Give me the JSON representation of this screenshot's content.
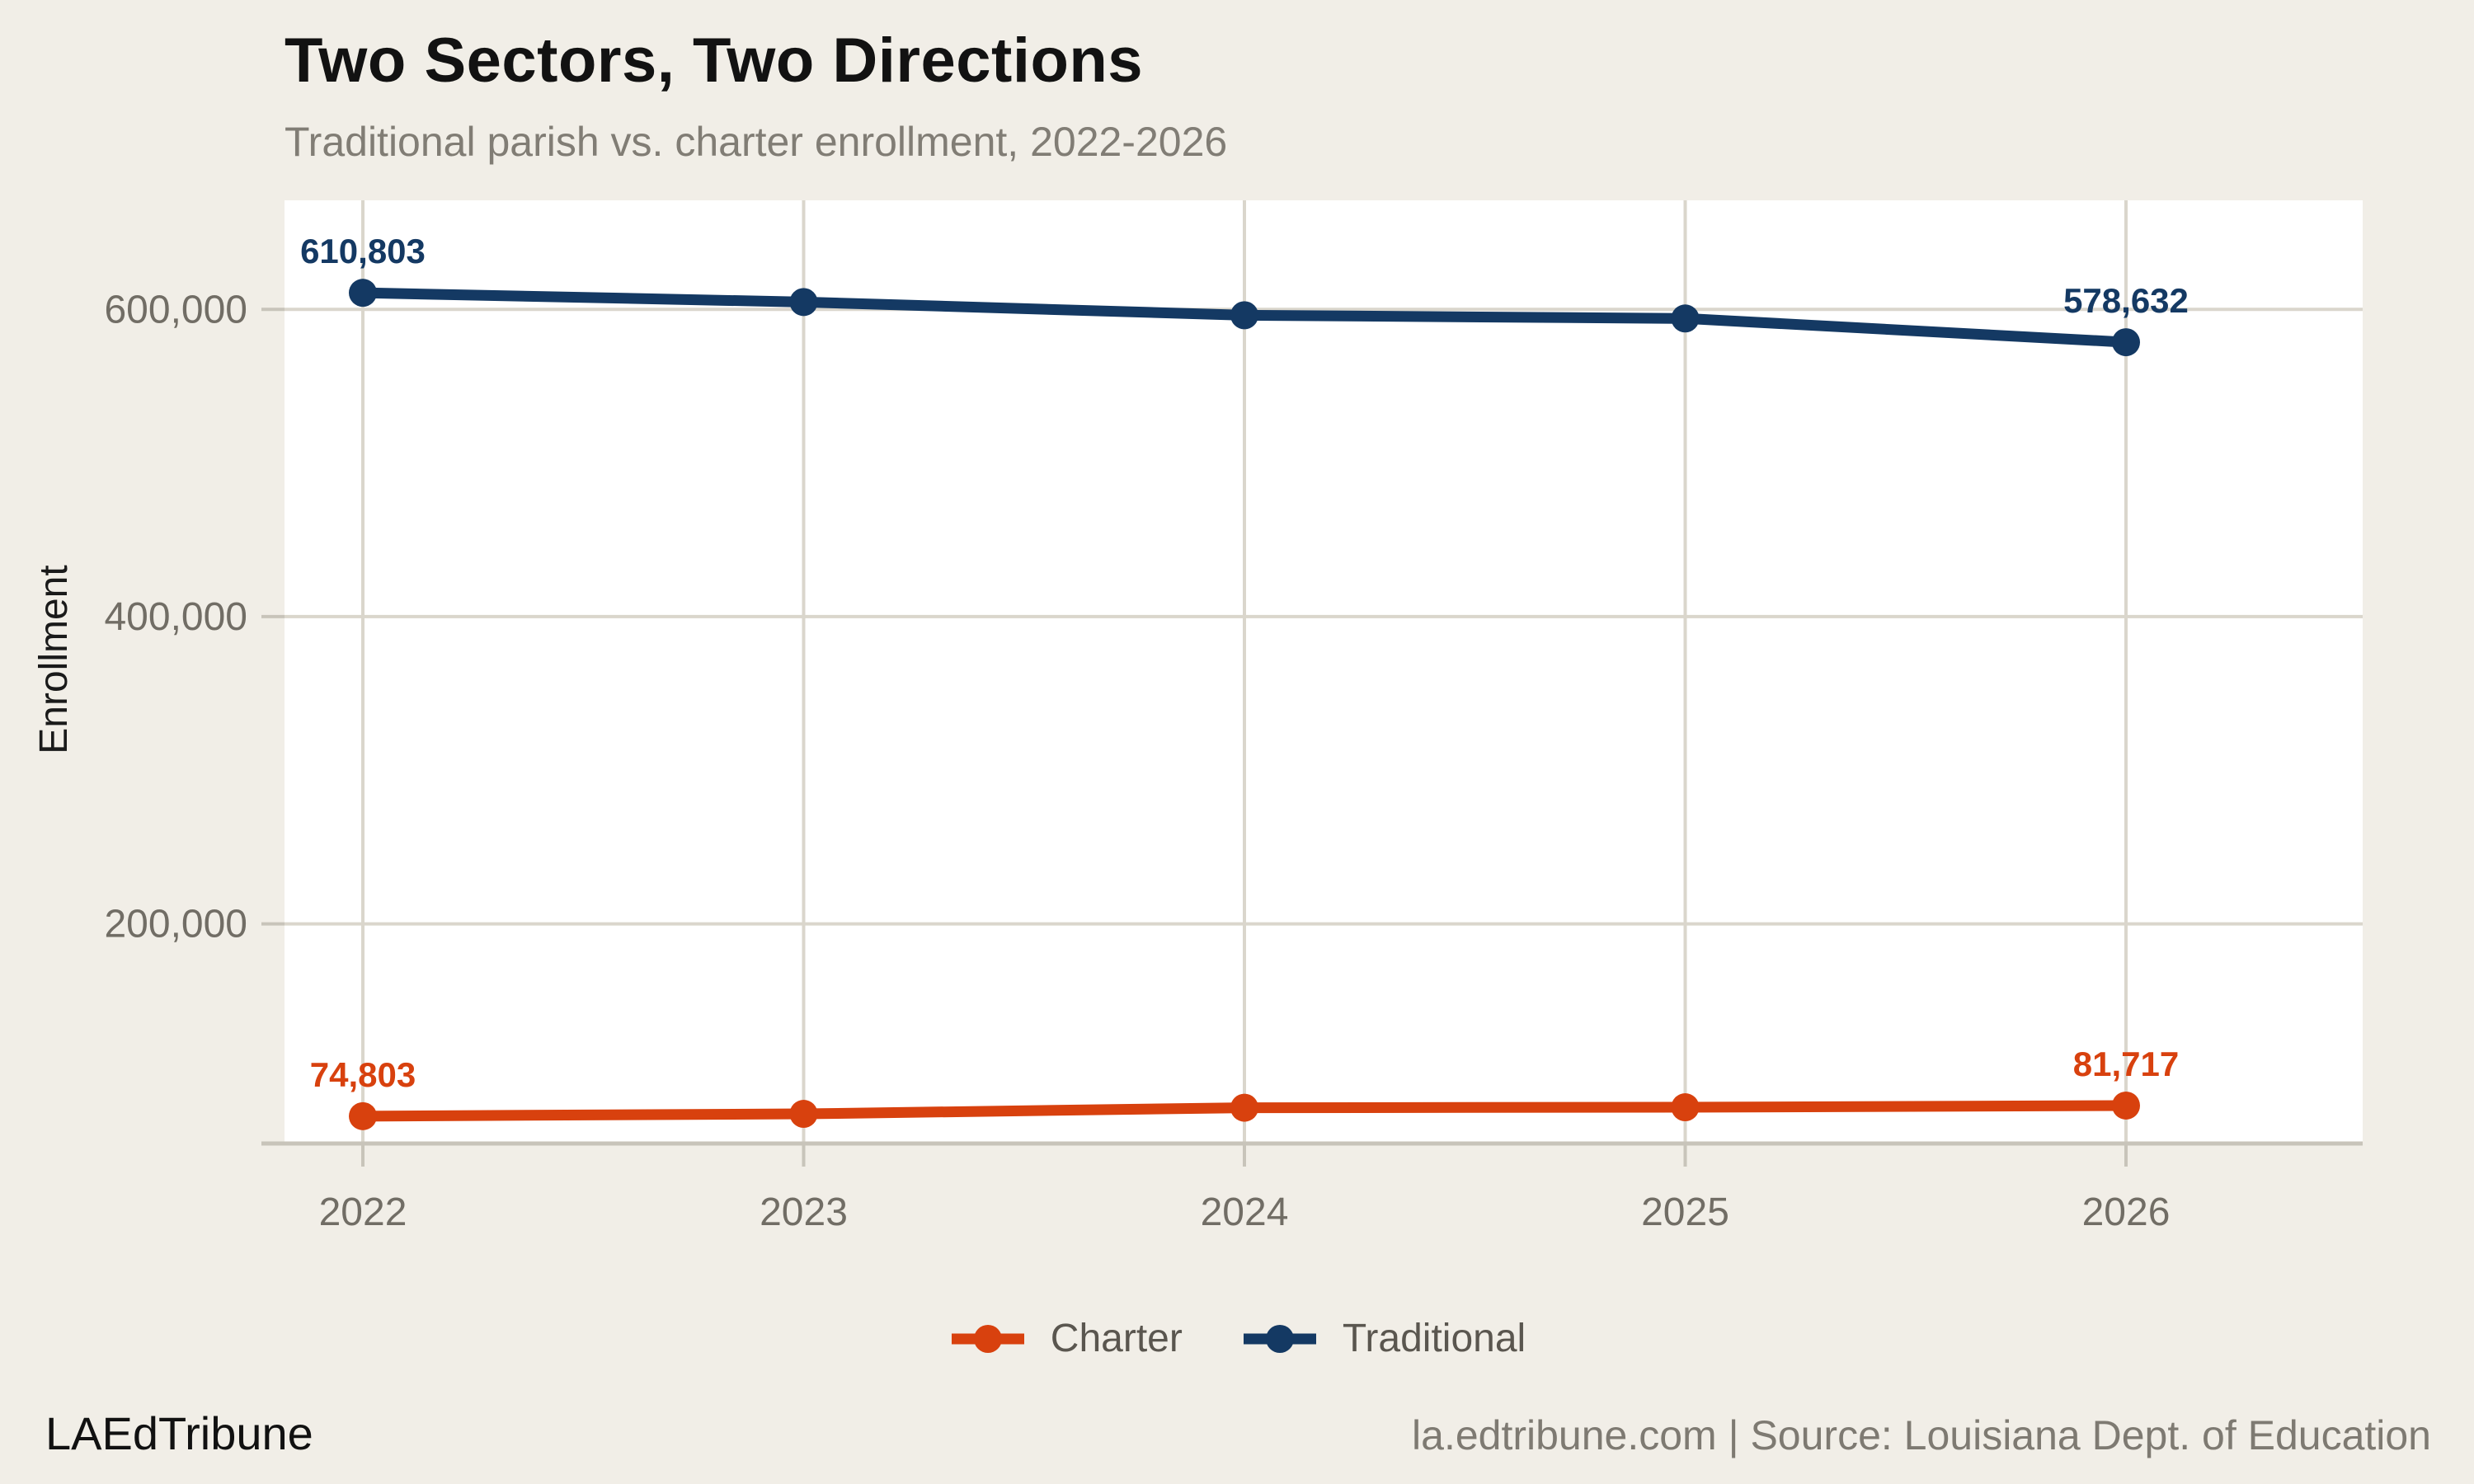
{
  "chart_data": {
    "type": "line",
    "title": "Two Sectors, Two Directions",
    "subtitle": "Traditional parish vs. charter enrollment, 2022-2026",
    "ylabel": "Enrollment",
    "xlabel": "",
    "categories": [
      "2022",
      "2023",
      "2024",
      "2025",
      "2026"
    ],
    "series": [
      {
        "name": "Charter",
        "color": "#D8410E",
        "values": [
          74803,
          76300,
          80300,
          80600,
          81717
        ],
        "point_labels": {
          "0": "74,803",
          "4": "81,717"
        }
      },
      {
        "name": "Traditional",
        "color": "#143963",
        "values": [
          610803,
          604800,
          596200,
          594100,
          578632
        ],
        "point_labels": {
          "0": "610,803",
          "4": "578,632"
        }
      }
    ],
    "yticks": {
      "values": [
        200000,
        400000,
        600000
      ],
      "labels": [
        "200,000",
        "400,000",
        "600,000"
      ]
    },
    "ylim": [
      57000,
      671000
    ],
    "grid": true,
    "legend_position": "bottom",
    "plot_background": "#FFFFFF",
    "page_background": "#F1EEE7",
    "gridline_color": "#DAD6CC",
    "axis_line_color": "#C8C4BA",
    "tick_label_color": "#716D65"
  },
  "footer": {
    "brand": "LAEdTribune",
    "source": "la.edtribune.com | Source: Louisiana Dept. of Education"
  }
}
